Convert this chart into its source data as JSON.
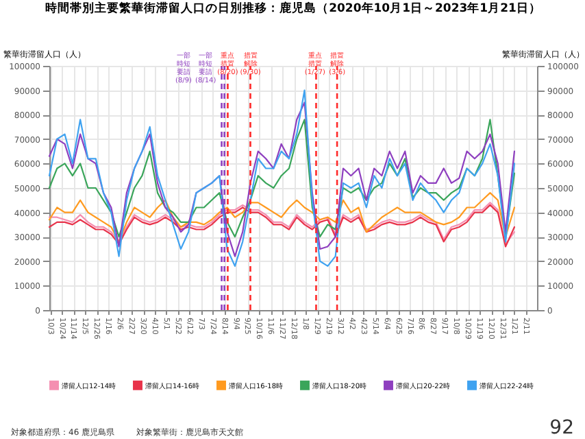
{
  "chart_data": {
    "type": "line",
    "title": "時間帯別主要繁華街滞留人口の日別推移：鹿児島（2020年10月1日～2023年1月21日）",
    "ylabel": "繁華街滞留人口（人）",
    "y2label": "繁華街滞留人口（人）",
    "x": [
      "2020-10-01",
      "2020-10-15",
      "2020-10-29",
      "2020-11-12",
      "2020-11-26",
      "2020-12-10",
      "2020-12-24",
      "2021-01-07",
      "2021-01-21",
      "2021-02-04",
      "2021-02-18",
      "2021-03-04",
      "2021-03-18",
      "2021-04-01",
      "2021-04-15",
      "2021-04-29",
      "2021-05-13",
      "2021-05-27",
      "2021-06-10",
      "2021-06-24",
      "2021-07-08",
      "2021-07-22",
      "2021-08-05",
      "2021-08-19",
      "2021-09-02",
      "2021-09-16",
      "2021-09-30",
      "2021-10-14",
      "2021-10-28",
      "2021-11-11",
      "2021-11-25",
      "2021-12-09",
      "2021-12-23",
      "2022-01-06",
      "2022-01-20",
      "2022-02-03",
      "2022-02-17",
      "2022-03-03",
      "2022-03-17",
      "2022-03-31",
      "2022-04-14",
      "2022-04-28",
      "2022-05-12",
      "2022-05-26",
      "2022-06-09",
      "2022-06-23",
      "2022-07-07",
      "2022-07-21",
      "2022-08-04",
      "2022-08-18",
      "2022-09-01",
      "2022-09-15",
      "2022-09-29",
      "2022-10-13",
      "2022-10-27",
      "2022-11-10",
      "2022-11-24",
      "2022-12-08",
      "2022-12-22",
      "2023-01-05",
      "2023-01-21"
    ],
    "series": [
      {
        "name": "滞留人口12-14時",
        "color": "#f48fb1",
        "values": [
          38000,
          38000,
          37000,
          36000,
          39000,
          36000,
          34000,
          34000,
          32000,
          28000,
          34000,
          39000,
          37000,
          36000,
          37000,
          39000,
          37000,
          34000,
          35000,
          34000,
          34000,
          36000,
          39000,
          41000,
          41000,
          43000,
          41000,
          41000,
          39000,
          36000,
          36000,
          34000,
          39000,
          36000,
          34000,
          37000,
          38000,
          31000,
          39000,
          37000,
          39000,
          33000,
          34000,
          36000,
          37000,
          36000,
          36000,
          37000,
          39000,
          37000,
          36000,
          29000,
          34000,
          35000,
          37000,
          41000,
          41000,
          44000,
          41000,
          27000,
          32000
        ]
      },
      {
        "name": "滞留人口14-16時",
        "color": "#e8334a",
        "values": [
          34000,
          36000,
          36000,
          35000,
          37000,
          35000,
          33000,
          33000,
          31000,
          27000,
          33000,
          38000,
          36000,
          35000,
          36000,
          38000,
          36000,
          33000,
          34000,
          33000,
          33000,
          35000,
          38000,
          40000,
          40000,
          42000,
          40000,
          40000,
          38000,
          35000,
          35000,
          33000,
          38000,
          35000,
          33000,
          36000,
          37000,
          30000,
          38000,
          36000,
          38000,
          32000,
          33000,
          35000,
          36000,
          35000,
          35000,
          36000,
          38000,
          36000,
          35000,
          28000,
          33000,
          34000,
          36000,
          40000,
          40000,
          43000,
          40000,
          26000,
          34000
        ]
      },
      {
        "name": "滞留人口16-18時",
        "color": "#ff9a1f",
        "values": [
          37000,
          42000,
          40000,
          40000,
          45000,
          40000,
          38000,
          36000,
          34000,
          28000,
          36000,
          42000,
          40000,
          38000,
          42000,
          45000,
          38000,
          34000,
          36000,
          36000,
          35000,
          37000,
          40000,
          42000,
          38000,
          40000,
          44000,
          44000,
          42000,
          40000,
          38000,
          42000,
          45000,
          42000,
          40000,
          37000,
          38000,
          36000,
          45000,
          40000,
          42000,
          32000,
          35000,
          38000,
          40000,
          42000,
          40000,
          40000,
          40000,
          38000,
          36000,
          35000,
          36000,
          38000,
          42000,
          42000,
          45000,
          48000,
          45000,
          30000,
          42000
        ]
      },
      {
        "name": "滞留人口18-20時",
        "color": "#3aa55a",
        "values": [
          50000,
          58000,
          60000,
          55000,
          60000,
          50000,
          50000,
          45000,
          40000,
          30000,
          40000,
          50000,
          55000,
          65000,
          48000,
          42000,
          40000,
          36000,
          36000,
          42000,
          42000,
          45000,
          48000,
          36000,
          30000,
          38000,
          45000,
          55000,
          52000,
          50000,
          55000,
          58000,
          70000,
          78000,
          42000,
          30000,
          35000,
          33000,
          50000,
          48000,
          50000,
          45000,
          50000,
          52000,
          60000,
          55000,
          62000,
          46000,
          50000,
          48000,
          48000,
          45000,
          48000,
          50000,
          58000,
          55000,
          62000,
          78000,
          55000,
          30000,
          56000
        ]
      },
      {
        "name": "滞留人口20-22時",
        "color": "#8e3fbf",
        "values": [
          63000,
          70000,
          68000,
          58000,
          72000,
          62000,
          60000,
          48000,
          42000,
          26000,
          48000,
          58000,
          65000,
          72000,
          52000,
          42000,
          38000,
          32000,
          35000,
          48000,
          50000,
          52000,
          55000,
          32000,
          22000,
          32000,
          52000,
          65000,
          62000,
          58000,
          68000,
          62000,
          78000,
          85000,
          48000,
          25000,
          26000,
          30000,
          58000,
          55000,
          58000,
          45000,
          58000,
          55000,
          65000,
          58000,
          65000,
          48000,
          55000,
          52000,
          52000,
          58000,
          52000,
          54000,
          65000,
          62000,
          65000,
          72000,
          60000,
          32000,
          65000
        ]
      },
      {
        "name": "滞留人口22-24時",
        "color": "#3fa2f0",
        "values": [
          55000,
          70000,
          72000,
          60000,
          78000,
          62000,
          62000,
          48000,
          40000,
          22000,
          45000,
          58000,
          65000,
          75000,
          55000,
          45000,
          35000,
          25000,
          32000,
          48000,
          50000,
          52000,
          55000,
          25000,
          18000,
          28000,
          45000,
          62000,
          58000,
          58000,
          65000,
          62000,
          72000,
          90000,
          45000,
          20000,
          18000,
          22000,
          52000,
          50000,
          52000,
          42000,
          55000,
          50000,
          62000,
          55000,
          60000,
          45000,
          52000,
          48000,
          45000,
          40000,
          45000,
          48000,
          58000,
          55000,
          60000,
          68000,
          55000,
          28000,
          60000
        ]
      }
    ],
    "xlim": [
      "2020-10-01",
      "2023-03-03"
    ],
    "xticks": [
      {
        "value": "2020-10-03",
        "label": "10/3"
      },
      {
        "value": "2020-10-24",
        "label": "10/24"
      },
      {
        "value": "2020-11-14",
        "label": "11/14"
      },
      {
        "value": "2020-12-05",
        "label": "12/5"
      },
      {
        "value": "2020-12-26",
        "label": "12/26"
      },
      {
        "value": "2021-01-16",
        "label": "1/16"
      },
      {
        "value": "2021-02-06",
        "label": "2/6"
      },
      {
        "value": "2021-02-27",
        "label": "2/27"
      },
      {
        "value": "2021-03-20",
        "label": "3/20"
      },
      {
        "value": "2021-04-10",
        "label": "4/10"
      },
      {
        "value": "2021-05-01",
        "label": "5/1"
      },
      {
        "value": "2021-05-22",
        "label": "5/22"
      },
      {
        "value": "2021-06-12",
        "label": "6/12"
      },
      {
        "value": "2021-07-03",
        "label": "7/3"
      },
      {
        "value": "2021-07-24",
        "label": "7/24"
      },
      {
        "value": "2021-08-14",
        "label": "8/14"
      },
      {
        "value": "2021-09-04",
        "label": "9/4"
      },
      {
        "value": "2021-09-25",
        "label": "9/25"
      },
      {
        "value": "2021-10-16",
        "label": "10/16"
      },
      {
        "value": "2021-11-06",
        "label": "11/6"
      },
      {
        "value": "2021-11-27",
        "label": "11/27"
      },
      {
        "value": "2021-12-18",
        "label": "12/18"
      },
      {
        "value": "2022-01-08",
        "label": "1/8"
      },
      {
        "value": "2022-01-29",
        "label": "1/29"
      },
      {
        "value": "2022-02-19",
        "label": "2/19"
      },
      {
        "value": "2022-03-12",
        "label": "3/12"
      },
      {
        "value": "2022-04-02",
        "label": "4/2"
      },
      {
        "value": "2022-04-23",
        "label": "4/23"
      },
      {
        "value": "2022-05-14",
        "label": "5/14"
      },
      {
        "value": "2022-06-04",
        "label": "6/4"
      },
      {
        "value": "2022-06-25",
        "label": "6/25"
      },
      {
        "value": "2022-07-16",
        "label": "7/16"
      },
      {
        "value": "2022-08-06",
        "label": "8/6"
      },
      {
        "value": "2022-08-27",
        "label": "8/27"
      },
      {
        "value": "2022-09-17",
        "label": "9/17"
      },
      {
        "value": "2022-10-08",
        "label": "10/8"
      },
      {
        "value": "2022-10-29",
        "label": "10/29"
      },
      {
        "value": "2022-11-19",
        "label": "11/19"
      },
      {
        "value": "2022-12-10",
        "label": "12/10"
      },
      {
        "value": "2022-12-31",
        "label": "12/31"
      },
      {
        "value": "2023-01-21",
        "label": "1/21"
      },
      {
        "value": "2023-02-11",
        "label": "2/11"
      }
    ],
    "ylim": [
      0,
      100000
    ],
    "yticks": [
      0,
      10000,
      20000,
      30000,
      40000,
      50000,
      60000,
      70000,
      80000,
      90000,
      100000
    ],
    "y2lim": [
      0,
      100000
    ],
    "y2ticks": [
      0,
      10000,
      20000,
      30000,
      40000,
      50000,
      60000,
      70000,
      80000,
      90000,
      100000
    ],
    "ref_lines": [
      {
        "axis": "x",
        "value": "2021-08-09",
        "label": "一部時短要請(8/9)",
        "color": "#8e3fbf",
        "line_style": "dashed"
      },
      {
        "axis": "x",
        "value": "2021-08-14",
        "label": "一部時短要請(8/14)",
        "color": "#8e3fbf",
        "line_style": "dashed"
      },
      {
        "axis": "x",
        "value": "2021-08-20",
        "label": "重点措置(8/20)",
        "color": "#ff2a2a",
        "line_style": "dashed"
      },
      {
        "axis": "x",
        "value": "2021-09-30",
        "label": "措置解除(9/30)",
        "color": "#ff2a2a",
        "line_style": "dashed"
      },
      {
        "axis": "x",
        "value": "2022-01-27",
        "label": "重点措置(1/27)",
        "color": "#ff2a2a",
        "line_style": "dashed"
      },
      {
        "axis": "x",
        "value": "2022-03-06",
        "label": "措置解除(3/6)",
        "color": "#ff2a2a",
        "line_style": "dashed"
      }
    ],
    "grid": true,
    "legend": "bottom",
    "line_style": "solid",
    "marker": "none",
    "annotations": [
      "対象都道府県：46 鹿児島県",
      "対象繁華街：鹿児島市天文館",
      "92"
    ]
  }
}
